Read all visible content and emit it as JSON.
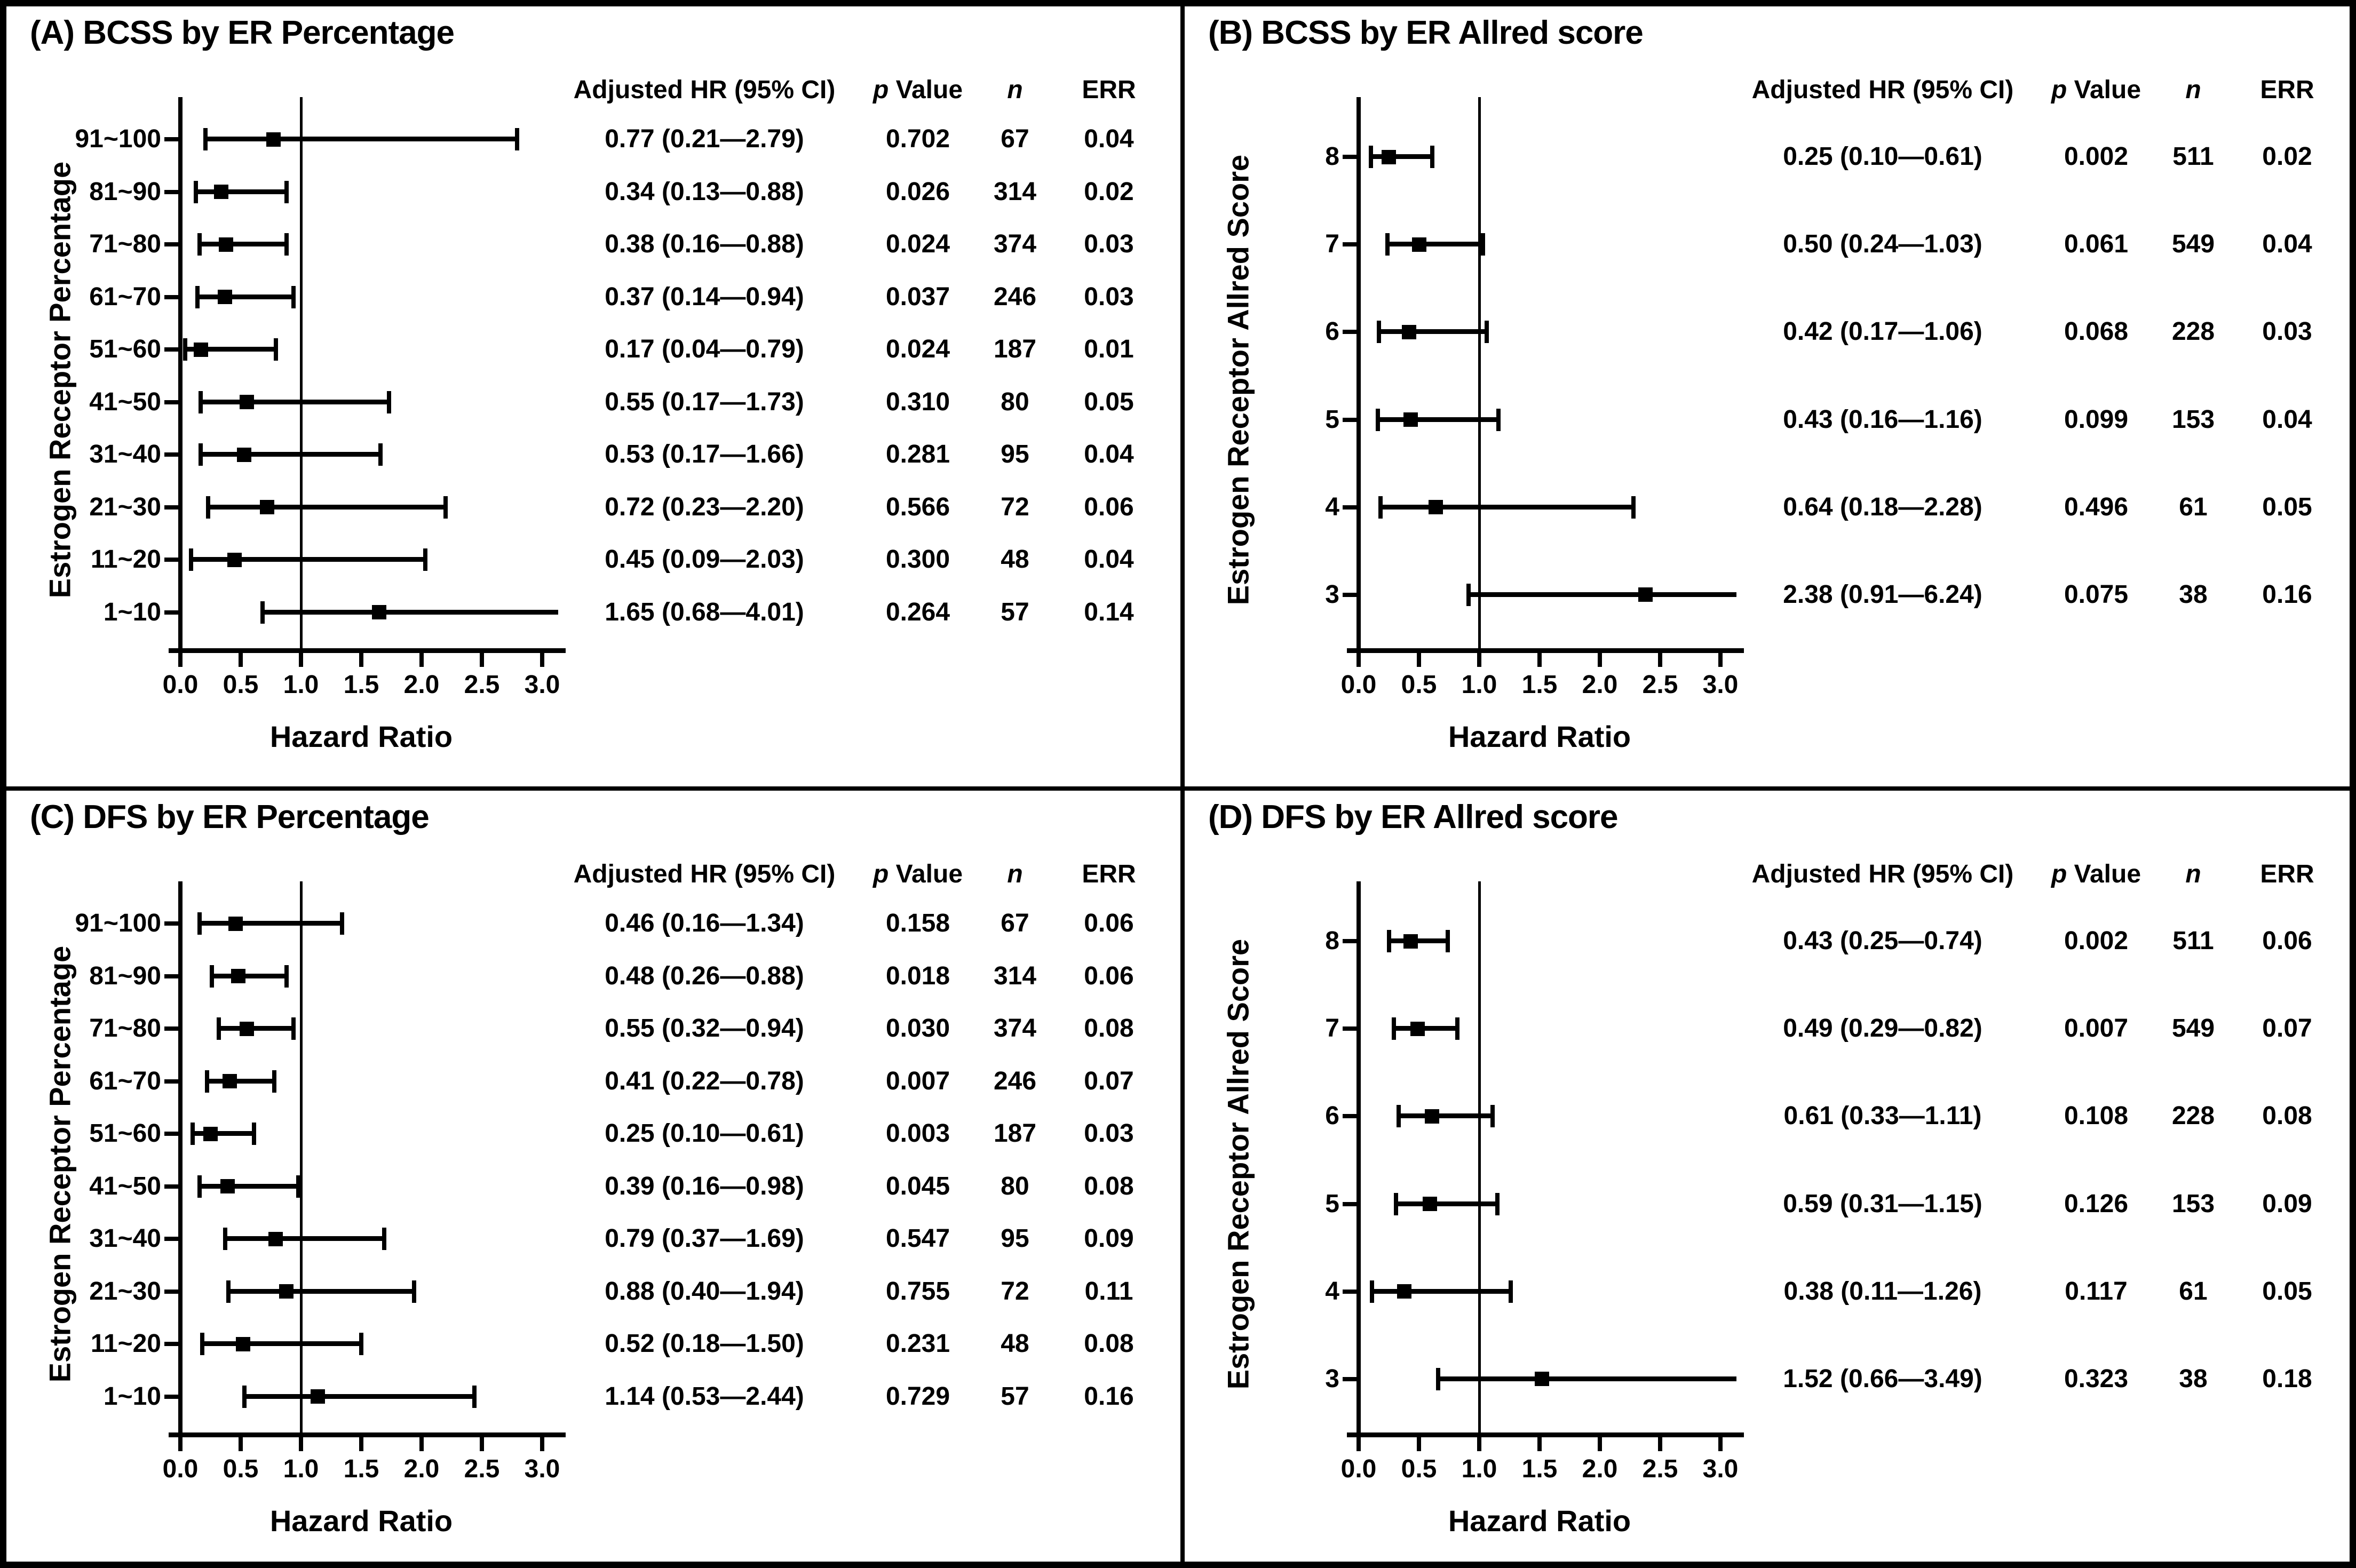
{
  "colors": {
    "foreground": "#000000",
    "background": "#ffffff"
  },
  "chart_data": [
    {
      "type": "forest",
      "panel": "a",
      "title": "(A) BCSS by ER Percentage",
      "y_label": "Estrogen Receptor Percentage",
      "x_label": "Hazard Ratio",
      "xlim": [
        0.0,
        3.0
      ],
      "x_ticks": [
        0,
        0.5,
        1,
        1.5,
        2,
        2.5,
        3
      ],
      "x_tick_labels": [
        "0.0",
        "0.5",
        "1.0",
        "1.5",
        "2.0",
        "2.5",
        "3.0"
      ],
      "ref_line": 1.0,
      "grid": false,
      "marker_shape": "square",
      "columns": [
        "Adjusted HR (95% CI)",
        "p Value",
        "n",
        "ERR"
      ],
      "rows": [
        {
          "category": "91~100",
          "hr": 0.77,
          "ci_low": 0.21,
          "ci_high": 2.79,
          "hr_ci": "0.77 (0.21—2.79)",
          "p": "0.702",
          "n": "67",
          "err": "0.04"
        },
        {
          "category": "81~90",
          "hr": 0.34,
          "ci_low": 0.13,
          "ci_high": 0.88,
          "hr_ci": "0.34 (0.13—0.88)",
          "p": "0.026",
          "n": "314",
          "err": "0.02"
        },
        {
          "category": "71~80",
          "hr": 0.38,
          "ci_low": 0.16,
          "ci_high": 0.88,
          "hr_ci": "0.38 (0.16—0.88)",
          "p": "0.024",
          "n": "374",
          "err": "0.03"
        },
        {
          "category": "61~70",
          "hr": 0.37,
          "ci_low": 0.14,
          "ci_high": 0.94,
          "hr_ci": "0.37 (0.14—0.94)",
          "p": "0.037",
          "n": "246",
          "err": "0.03"
        },
        {
          "category": "51~60",
          "hr": 0.17,
          "ci_low": 0.04,
          "ci_high": 0.79,
          "hr_ci": "0.17 (0.04—0.79)",
          "p": "0.024",
          "n": "187",
          "err": "0.01"
        },
        {
          "category": "41~50",
          "hr": 0.55,
          "ci_low": 0.17,
          "ci_high": 1.73,
          "hr_ci": "0.55 (0.17—1.73)",
          "p": "0.310",
          "n": "80",
          "err": "0.05"
        },
        {
          "category": "31~40",
          "hr": 0.53,
          "ci_low": 0.17,
          "ci_high": 1.66,
          "hr_ci": "0.53 (0.17—1.66)",
          "p": "0.281",
          "n": "95",
          "err": "0.04"
        },
        {
          "category": "21~30",
          "hr": 0.72,
          "ci_low": 0.23,
          "ci_high": 2.2,
          "hr_ci": "0.72 (0.23—2.20)",
          "p": "0.566",
          "n": "72",
          "err": "0.06"
        },
        {
          "category": "11~20",
          "hr": 0.45,
          "ci_low": 0.09,
          "ci_high": 2.03,
          "hr_ci": "0.45 (0.09—2.03)",
          "p": "0.300",
          "n": "48",
          "err": "0.04"
        },
        {
          "category": "1~10",
          "hr": 1.65,
          "ci_low": 0.68,
          "ci_high": 4.01,
          "hr_ci": "1.65 (0.68—4.01)",
          "p": "0.264",
          "n": "57",
          "err": "0.14"
        }
      ]
    },
    {
      "type": "forest",
      "panel": "b",
      "title": "(B) BCSS by ER Allred score",
      "y_label": "Estrogen Receptor Allred Score",
      "x_label": "Hazard Ratio",
      "xlim": [
        0.0,
        3.0
      ],
      "x_ticks": [
        0,
        0.5,
        1,
        1.5,
        2,
        2.5,
        3
      ],
      "x_tick_labels": [
        "0.0",
        "0.5",
        "1.0",
        "1.5",
        "2.0",
        "2.5",
        "3.0"
      ],
      "ref_line": 1.0,
      "grid": false,
      "marker_shape": "square",
      "columns": [
        "Adjusted HR (95% CI)",
        "p Value",
        "n",
        "ERR"
      ],
      "rows": [
        {
          "category": "8",
          "hr": 0.25,
          "ci_low": 0.1,
          "ci_high": 0.61,
          "hr_ci": "0.25 (0.10—0.61)",
          "p": "0.002",
          "n": "511",
          "err": "0.02"
        },
        {
          "category": "7",
          "hr": 0.5,
          "ci_low": 0.24,
          "ci_high": 1.03,
          "hr_ci": "0.50 (0.24—1.03)",
          "p": "0.061",
          "n": "549",
          "err": "0.04"
        },
        {
          "category": "6",
          "hr": 0.42,
          "ci_low": 0.17,
          "ci_high": 1.06,
          "hr_ci": "0.42 (0.17—1.06)",
          "p": "0.068",
          "n": "228",
          "err": "0.03"
        },
        {
          "category": "5",
          "hr": 0.43,
          "ci_low": 0.16,
          "ci_high": 1.16,
          "hr_ci": "0.43 (0.16—1.16)",
          "p": "0.099",
          "n": "153",
          "err": "0.04"
        },
        {
          "category": "4",
          "hr": 0.64,
          "ci_low": 0.18,
          "ci_high": 2.28,
          "hr_ci": "0.64 (0.18—2.28)",
          "p": "0.496",
          "n": "61",
          "err": "0.05"
        },
        {
          "category": "3",
          "hr": 2.38,
          "ci_low": 0.91,
          "ci_high": 6.24,
          "hr_ci": "2.38 (0.91—6.24)",
          "p": "0.075",
          "n": "38",
          "err": "0.16"
        }
      ]
    },
    {
      "type": "forest",
      "panel": "c",
      "title": "(C) DFS by ER Percentage",
      "y_label": "Estrogen Receptor Percentage",
      "x_label": "Hazard Ratio",
      "xlim": [
        0.0,
        3.0
      ],
      "x_ticks": [
        0,
        0.5,
        1,
        1.5,
        2,
        2.5,
        3
      ],
      "x_tick_labels": [
        "0.0",
        "0.5",
        "1.0",
        "1.5",
        "2.0",
        "2.5",
        "3.0"
      ],
      "ref_line": 1.0,
      "grid": false,
      "marker_shape": "square",
      "columns": [
        "Adjusted HR (95% CI)",
        "p Value",
        "n",
        "ERR"
      ],
      "rows": [
        {
          "category": "91~100",
          "hr": 0.46,
          "ci_low": 0.16,
          "ci_high": 1.34,
          "hr_ci": "0.46 (0.16—1.34)",
          "p": "0.158",
          "n": "67",
          "err": "0.06"
        },
        {
          "category": "81~90",
          "hr": 0.48,
          "ci_low": 0.26,
          "ci_high": 0.88,
          "hr_ci": "0.48 (0.26—0.88)",
          "p": "0.018",
          "n": "314",
          "err": "0.06"
        },
        {
          "category": "71~80",
          "hr": 0.55,
          "ci_low": 0.32,
          "ci_high": 0.94,
          "hr_ci": "0.55 (0.32—0.94)",
          "p": "0.030",
          "n": "374",
          "err": "0.08"
        },
        {
          "category": "61~70",
          "hr": 0.41,
          "ci_low": 0.22,
          "ci_high": 0.78,
          "hr_ci": "0.41 (0.22—0.78)",
          "p": "0.007",
          "n": "246",
          "err": "0.07"
        },
        {
          "category": "51~60",
          "hr": 0.25,
          "ci_low": 0.1,
          "ci_high": 0.61,
          "hr_ci": "0.25 (0.10—0.61)",
          "p": "0.003",
          "n": "187",
          "err": "0.03"
        },
        {
          "category": "41~50",
          "hr": 0.39,
          "ci_low": 0.16,
          "ci_high": 0.98,
          "hr_ci": "0.39 (0.16—0.98)",
          "p": "0.045",
          "n": "80",
          "err": "0.08"
        },
        {
          "category": "31~40",
          "hr": 0.79,
          "ci_low": 0.37,
          "ci_high": 1.69,
          "hr_ci": "0.79 (0.37—1.69)",
          "p": "0.547",
          "n": "95",
          "err": "0.09"
        },
        {
          "category": "21~30",
          "hr": 0.88,
          "ci_low": 0.4,
          "ci_high": 1.94,
          "hr_ci": "0.88 (0.40—1.94)",
          "p": "0.755",
          "n": "72",
          "err": "0.11"
        },
        {
          "category": "11~20",
          "hr": 0.52,
          "ci_low": 0.18,
          "ci_high": 1.5,
          "hr_ci": "0.52 (0.18—1.50)",
          "p": "0.231",
          "n": "48",
          "err": "0.08"
        },
        {
          "category": "1~10",
          "hr": 1.14,
          "ci_low": 0.53,
          "ci_high": 2.44,
          "hr_ci": "1.14 (0.53—2.44)",
          "p": "0.729",
          "n": "57",
          "err": "0.16"
        }
      ]
    },
    {
      "type": "forest",
      "panel": "d",
      "title": "(D) DFS by ER Allred score",
      "y_label": "Estrogen Receptor Allred Score",
      "x_label": "Hazard Ratio",
      "xlim": [
        0.0,
        3.0
      ],
      "x_ticks": [
        0,
        0.5,
        1,
        1.5,
        2,
        2.5,
        3
      ],
      "x_tick_labels": [
        "0.0",
        "0.5",
        "1.0",
        "1.5",
        "2.0",
        "2.5",
        "3.0"
      ],
      "ref_line": 1.0,
      "grid": false,
      "marker_shape": "square",
      "columns": [
        "Adjusted HR (95% CI)",
        "p Value",
        "n",
        "ERR"
      ],
      "rows": [
        {
          "category": "8",
          "hr": 0.43,
          "ci_low": 0.25,
          "ci_high": 0.74,
          "hr_ci": "0.43 (0.25—0.74)",
          "p": "0.002",
          "n": "511",
          "err": "0.06"
        },
        {
          "category": "7",
          "hr": 0.49,
          "ci_low": 0.29,
          "ci_high": 0.82,
          "hr_ci": "0.49 (0.29—0.82)",
          "p": "0.007",
          "n": "549",
          "err": "0.07"
        },
        {
          "category": "6",
          "hr": 0.61,
          "ci_low": 0.33,
          "ci_high": 1.11,
          "hr_ci": "0.61 (0.33—1.11)",
          "p": "0.108",
          "n": "228",
          "err": "0.08"
        },
        {
          "category": "5",
          "hr": 0.59,
          "ci_low": 0.31,
          "ci_high": 1.15,
          "hr_ci": "0.59 (0.31—1.15)",
          "p": "0.126",
          "n": "153",
          "err": "0.09"
        },
        {
          "category": "4",
          "hr": 0.38,
          "ci_low": 0.11,
          "ci_high": 1.26,
          "hr_ci": "0.38 (0.11—1.26)",
          "p": "0.117",
          "n": "61",
          "err": "0.05"
        },
        {
          "category": "3",
          "hr": 1.52,
          "ci_low": 0.66,
          "ci_high": 3.49,
          "hr_ci": "1.52 (0.66—3.49)",
          "p": "0.323",
          "n": "38",
          "err": "0.18"
        }
      ]
    }
  ]
}
